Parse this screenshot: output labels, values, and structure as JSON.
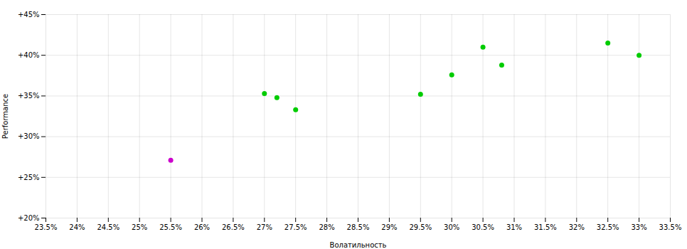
{
  "chart_data": {
    "type": "scatter",
    "xlabel": "Волатильность",
    "ylabel": "Performance",
    "xlim": [
      0.235,
      0.335
    ],
    "ylim": [
      0.2,
      0.45
    ],
    "xticks": [
      {
        "value": 0.235,
        "label": "23.5%"
      },
      {
        "value": 0.24,
        "label": "24%"
      },
      {
        "value": 0.245,
        "label": "24.5%"
      },
      {
        "value": 0.25,
        "label": "25%"
      },
      {
        "value": 0.255,
        "label": "25.5%"
      },
      {
        "value": 0.26,
        "label": "26%"
      },
      {
        "value": 0.265,
        "label": "26.5%"
      },
      {
        "value": 0.27,
        "label": "27%"
      },
      {
        "value": 0.275,
        "label": "27.5%"
      },
      {
        "value": 0.28,
        "label": "28%"
      },
      {
        "value": 0.285,
        "label": "28.5%"
      },
      {
        "value": 0.29,
        "label": "29%"
      },
      {
        "value": 0.295,
        "label": "29.5%"
      },
      {
        "value": 0.3,
        "label": "30%"
      },
      {
        "value": 0.305,
        "label": "30.5%"
      },
      {
        "value": 0.31,
        "label": "31%"
      },
      {
        "value": 0.315,
        "label": "31.5%"
      },
      {
        "value": 0.32,
        "label": "32%"
      },
      {
        "value": 0.325,
        "label": "32.5%"
      },
      {
        "value": 0.33,
        "label": "33%"
      },
      {
        "value": 0.335,
        "label": "33.5%"
      }
    ],
    "yticks": [
      {
        "value": 0.2,
        "label": "+20%"
      },
      {
        "value": 0.25,
        "label": "+25%"
      },
      {
        "value": 0.3,
        "label": "+30%"
      },
      {
        "value": 0.35,
        "label": "+35%"
      },
      {
        "value": 0.4,
        "label": "+40%"
      },
      {
        "value": 0.45,
        "label": "+45%"
      }
    ],
    "grid": true,
    "series": [
      {
        "color": "#00cc00",
        "x": [
          0.27,
          0.272,
          0.275,
          0.295,
          0.3,
          0.305,
          0.308,
          0.325,
          0.33
        ],
        "values": [
          0.353,
          0.348,
          0.333,
          0.352,
          0.376,
          0.41,
          0.388,
          0.415,
          0.4
        ]
      },
      {
        "color": "#cc00cc",
        "x": [
          0.255
        ],
        "values": [
          0.271
        ]
      }
    ]
  }
}
